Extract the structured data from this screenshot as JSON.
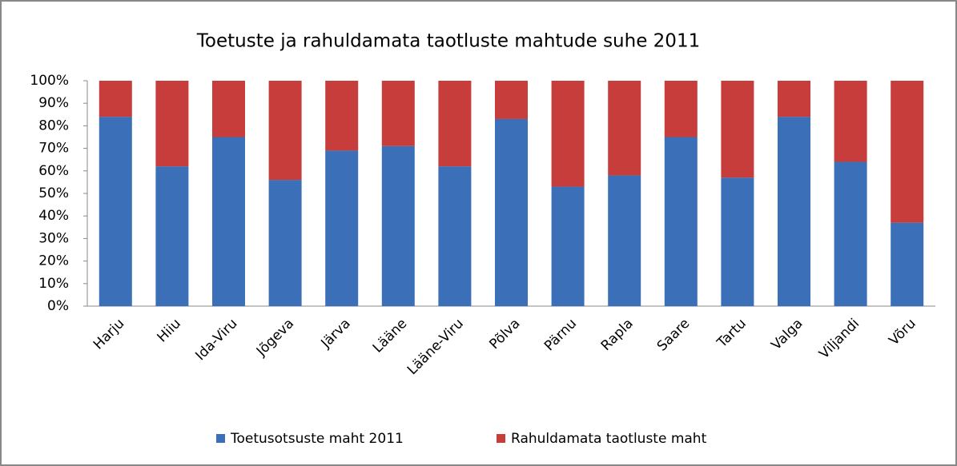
{
  "chart_data": {
    "type": "stacked_bar",
    "title": "Toetuste ja rahuldamata taotluste mahtude suhe 2011",
    "categories": [
      "Harju",
      "Hiiu",
      "Ida-Viru",
      "Jõgeva",
      "Järva",
      "Lääne",
      "Lääne-Viru",
      "Põlva",
      "Pärnu",
      "Rapla",
      "Saare",
      "Tartu",
      "Valga",
      "Viljandi",
      "Võru"
    ],
    "series": [
      {
        "name": "Toetusotsuste maht 2011",
        "color": "#3b6fb8",
        "values": [
          84,
          62,
          75,
          56,
          69,
          71,
          62,
          83,
          53,
          58,
          75,
          57,
          84,
          64,
          37
        ]
      },
      {
        "name": "Rahuldamata taotluste maht",
        "color": "#c63d3b",
        "values": [
          16,
          38,
          25,
          44,
          31,
          29,
          38,
          17,
          47,
          42,
          25,
          43,
          16,
          36,
          63
        ]
      }
    ],
    "ylim": [
      0,
      100
    ],
    "yticks": [
      {
        "value": 0,
        "label": "0%"
      },
      {
        "value": 10,
        "label": "10%"
      },
      {
        "value": 20,
        "label": "20%"
      },
      {
        "value": 30,
        "label": "30%"
      },
      {
        "value": 40,
        "label": "40%"
      },
      {
        "value": 50,
        "label": "50%"
      },
      {
        "value": 60,
        "label": "60%"
      },
      {
        "value": 70,
        "label": "70%"
      },
      {
        "value": 80,
        "label": "80%"
      },
      {
        "value": 90,
        "label": "90%"
      },
      {
        "value": 100,
        "label": "100%"
      }
    ],
    "grid": false,
    "legend": "bottom"
  }
}
